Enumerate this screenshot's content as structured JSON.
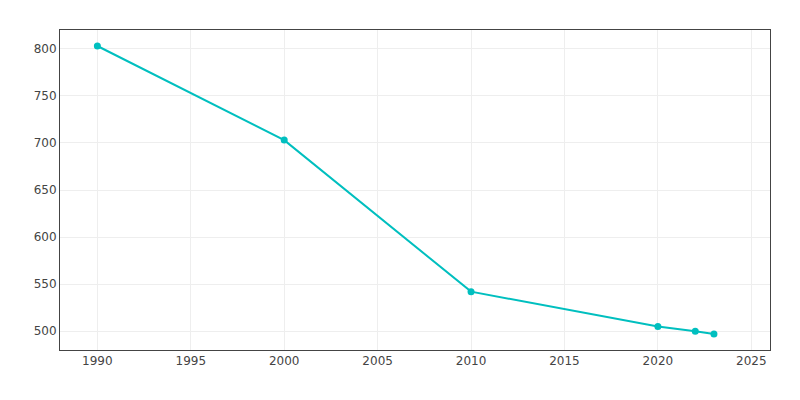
{
  "chart_data": {
    "type": "line",
    "x": [
      1990,
      2000,
      2010,
      2020,
      2022,
      2023
    ],
    "values": [
      803,
      703,
      542,
      505,
      500,
      497
    ],
    "color": "#00BFBF",
    "marker": "circle",
    "xlim": [
      1988,
      2026
    ],
    "ylim": [
      480,
      820
    ],
    "xticks": [
      1990,
      1995,
      2000,
      2005,
      2010,
      2015,
      2020,
      2025
    ],
    "yticks": [
      500,
      550,
      600,
      650,
      700,
      750,
      800
    ],
    "grid": true
  }
}
